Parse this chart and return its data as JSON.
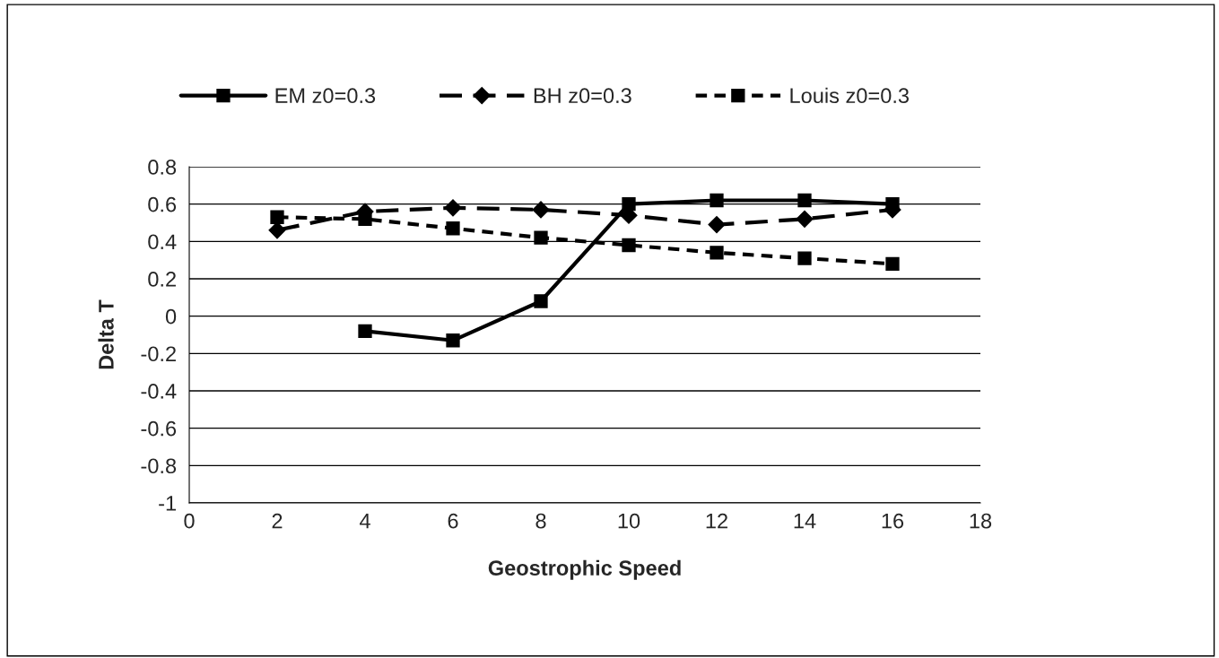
{
  "chart_data": {
    "type": "line",
    "xlabel": "Geostrophic Speed",
    "ylabel": "Delta T",
    "xlim": [
      0,
      18
    ],
    "xticks": [
      0,
      2,
      4,
      6,
      8,
      10,
      12,
      14,
      16,
      18
    ],
    "ylim": [
      -1,
      0.8
    ],
    "yticks": [
      -1,
      {
        "value": -0.8,
        "label": "-0.8"
      },
      {
        "value": -0.6,
        "label": "-0.6"
      },
      {
        "value": -0.4,
        "label": "-0.4"
      },
      {
        "value": -0.2,
        "label": "-0.2"
      },
      0,
      0.2,
      0.4,
      0.6,
      0.8
    ],
    "grid": "y",
    "legend": "top",
    "series": [
      {
        "name": "EM z0=0.3",
        "color": "#000000",
        "marker": "square",
        "line_style": "solid",
        "x": [
          4,
          6,
          8,
          10,
          12,
          14,
          16
        ],
        "values": [
          -0.08,
          -0.13,
          0.08,
          0.6,
          0.62,
          0.62,
          0.6
        ]
      },
      {
        "name": "BH z0=0.3",
        "color": "#000000",
        "marker": "diamond",
        "line_style": "dashed",
        "x": [
          2,
          4,
          6,
          8,
          10,
          12,
          14,
          16
        ],
        "values": [
          0.46,
          0.56,
          0.58,
          0.57,
          0.54,
          0.49,
          0.52,
          0.57
        ]
      },
      {
        "name": "Louis z0=0.3",
        "color": "#000000",
        "marker": "square",
        "line_style": "dotted",
        "x": [
          2,
          4,
          6,
          8,
          10,
          12,
          14,
          16
        ],
        "values": [
          0.53,
          0.52,
          0.47,
          0.42,
          0.38,
          0.34,
          0.31,
          0.28
        ]
      }
    ]
  }
}
